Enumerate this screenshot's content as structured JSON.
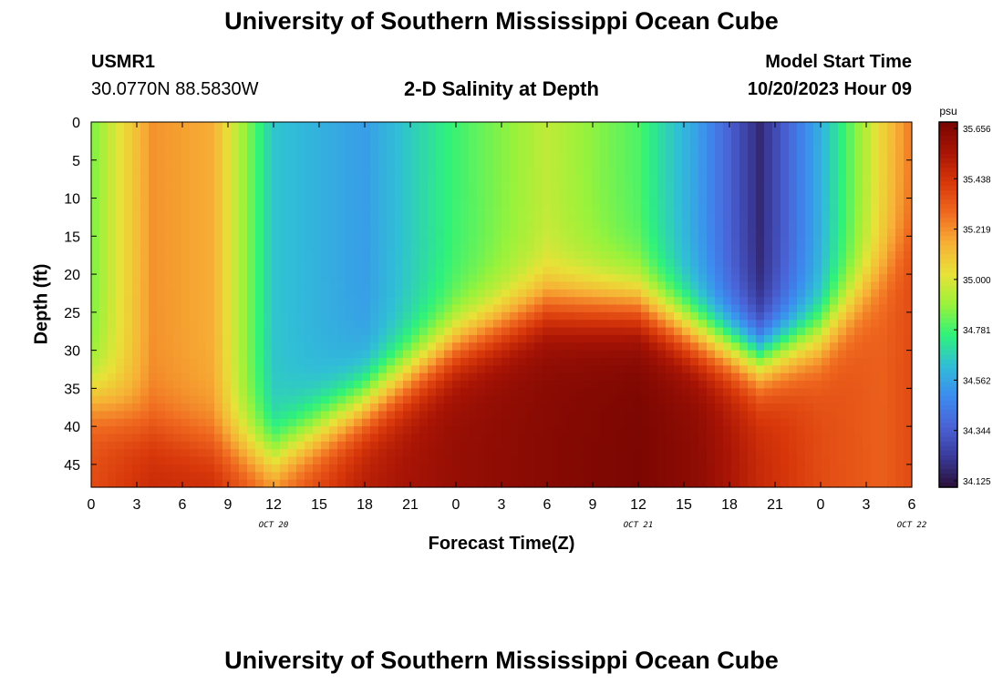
{
  "page": {
    "title": "University of Southern Mississippi Ocean Cube",
    "station_id": "USMR1",
    "station_location": "30.0770N  88.5830W",
    "plot_title": "2-D Salinity at Depth",
    "model_start_label": "Model Start Time",
    "model_start_value": "10/20/2023 Hour 09",
    "footer_title": "University of Southern Mississippi Ocean Cube"
  },
  "chart_data": {
    "type": "heatmap",
    "xlabel": "Forecast Time(Z)",
    "ylabel": "Depth (ft)",
    "x_tick_labels": [
      "0",
      "3",
      "6",
      "9",
      "12",
      "15",
      "18",
      "21",
      "0",
      "3",
      "6",
      "9",
      "12",
      "15",
      "18",
      "21",
      "0",
      "3",
      "6"
    ],
    "date_labels": [
      {
        "text": "OCT 20",
        "hour_index": 12
      },
      {
        "text": "OCT 21",
        "hour_index": 36
      },
      {
        "text": "OCT 22",
        "hour_index": 54
      }
    ],
    "x_range_hours": [
      0,
      54
    ],
    "y_ticks": [
      0,
      5,
      10,
      15,
      20,
      25,
      30,
      35,
      40,
      45
    ],
    "y_range": [
      0,
      48
    ],
    "y_inverted": true,
    "colorbar": {
      "unit": "psu",
      "tick_labels": [
        "35.656",
        "35.438",
        "35.219",
        "35.000",
        "34.781",
        "34.562",
        "34.344",
        "34.125"
      ],
      "min": 34.125,
      "max": 35.656
    },
    "colormap": [
      "#2a0f38",
      "#3a3a9a",
      "#4a63d6",
      "#3c8cf0",
      "#30bfd6",
      "#2ff27a",
      "#9af23a",
      "#e8e238",
      "#f7b136",
      "#f06a20",
      "#d8370a",
      "#a81405",
      "#7a0602"
    ],
    "salinity_by_time": [
      {
        "hour": 0,
        "surface": 34.85,
        "bottom": 35.35,
        "split_depth": 36
      },
      {
        "hour": 4,
        "surface": 35.2,
        "bottom": 35.45,
        "split_depth": 40
      },
      {
        "hour": 8,
        "surface": 35.15,
        "bottom": 35.45,
        "split_depth": 42
      },
      {
        "hour": 12,
        "surface": 34.65,
        "bottom": 35.3,
        "split_depth": 44
      },
      {
        "hour": 18,
        "surface": 34.55,
        "bottom": 35.5,
        "split_depth": 37
      },
      {
        "hour": 24,
        "surface": 34.78,
        "bottom": 35.58,
        "split_depth": 29
      },
      {
        "hour": 30,
        "surface": 34.95,
        "bottom": 35.62,
        "split_depth": 24
      },
      {
        "hour": 36,
        "surface": 34.8,
        "bottom": 35.65,
        "split_depth": 24
      },
      {
        "hour": 40,
        "surface": 34.55,
        "bottom": 35.6,
        "split_depth": 28
      },
      {
        "hour": 44,
        "surface": 34.2,
        "bottom": 35.45,
        "split_depth": 31
      },
      {
        "hour": 48,
        "surface": 34.6,
        "bottom": 35.35,
        "split_depth": 28
      },
      {
        "hour": 52,
        "surface": 35.05,
        "bottom": 35.3,
        "split_depth": 20
      },
      {
        "hour": 54,
        "surface": 35.25,
        "bottom": 35.35,
        "split_depth": 15
      }
    ]
  }
}
